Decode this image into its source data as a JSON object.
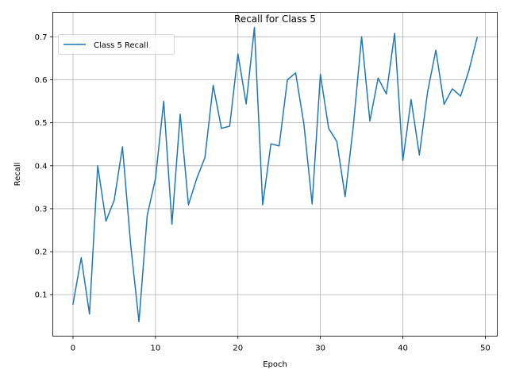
{
  "chart_data": {
    "type": "line",
    "title": "Recall for Class 5",
    "xlabel": "Epoch",
    "ylabel": "Recall",
    "xlim": [
      -2.45,
      51.45
    ],
    "ylim": [
      0.0035,
      0.757
    ],
    "xticks": [
      0,
      10,
      20,
      30,
      40,
      50
    ],
    "yticks": [
      0.1,
      0.2,
      0.3,
      0.4,
      0.5,
      0.6,
      0.7
    ],
    "grid": true,
    "legend_position": "top-left",
    "series": [
      {
        "name": "Class 5 Recall",
        "color": "#1f77b4",
        "x": [
          0,
          1,
          2,
          3,
          4,
          5,
          6,
          7,
          8,
          9,
          10,
          11,
          12,
          13,
          14,
          15,
          16,
          17,
          18,
          19,
          20,
          21,
          22,
          23,
          24,
          25,
          26,
          27,
          28,
          29,
          30,
          31,
          32,
          33,
          34,
          35,
          36,
          37,
          38,
          39,
          40,
          41,
          42,
          43,
          44,
          45,
          46,
          47,
          48,
          49
        ],
        "y": [
          0.078,
          0.186,
          0.055,
          0.4,
          0.271,
          0.32,
          0.444,
          0.215,
          0.037,
          0.284,
          0.37,
          0.55,
          0.264,
          0.52,
          0.309,
          0.37,
          0.419,
          0.587,
          0.487,
          0.492,
          0.66,
          0.544,
          0.722,
          0.309,
          0.451,
          0.446,
          0.6,
          0.616,
          0.497,
          0.311,
          0.613,
          0.487,
          0.456,
          0.328,
          0.494,
          0.7,
          0.504,
          0.604,
          0.567,
          0.708,
          0.412,
          0.554,
          0.425,
          0.572,
          0.669,
          0.543,
          0.579,
          0.562,
          0.621,
          0.698
        ]
      }
    ]
  }
}
